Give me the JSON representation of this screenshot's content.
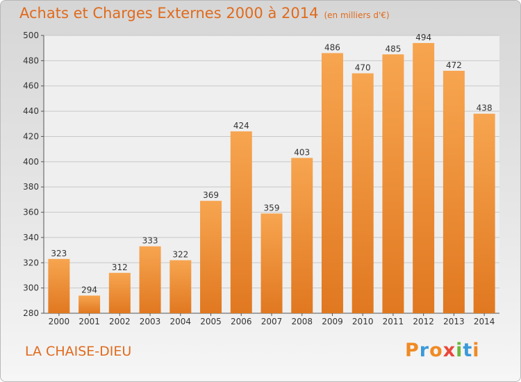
{
  "header": {
    "title": "Achats et Charges Externes 2000 à 2014",
    "unit": "(en milliers d'€)"
  },
  "footer": {
    "place": "LA CHAISE-DIEU",
    "logo": [
      {
        "ch": "P",
        "color": "#f08a24"
      },
      {
        "ch": "r",
        "color": "#3a9ad9"
      },
      {
        "ch": "o",
        "color": "#f08a24"
      },
      {
        "ch": "x",
        "color": "#e8483a"
      },
      {
        "ch": "i",
        "color": "#6ab83a"
      },
      {
        "ch": "t",
        "color": "#3a9ad9"
      },
      {
        "ch": "i",
        "color": "#f08a24"
      }
    ]
  },
  "colors": {
    "bar_top": "#f7a550",
    "bar_bottom": "#e07820",
    "text": "#333333",
    "accent": "#e06a1c"
  },
  "chart_data": {
    "type": "bar",
    "categories": [
      "2000",
      "2001",
      "2002",
      "2003",
      "2004",
      "2005",
      "2006",
      "2007",
      "2008",
      "2009",
      "2010",
      "2011",
      "2012",
      "2013",
      "2014"
    ],
    "values": [
      323,
      294,
      312,
      333,
      322,
      369,
      424,
      359,
      403,
      486,
      470,
      485,
      494,
      472,
      438
    ],
    "ylim": [
      280,
      500
    ],
    "yticks": [
      280,
      300,
      320,
      340,
      360,
      380,
      400,
      420,
      440,
      460,
      480,
      500
    ],
    "grid": true,
    "title": "Achats et Charges Externes 2000 à 2014",
    "xlabel": "",
    "ylabel": ""
  }
}
